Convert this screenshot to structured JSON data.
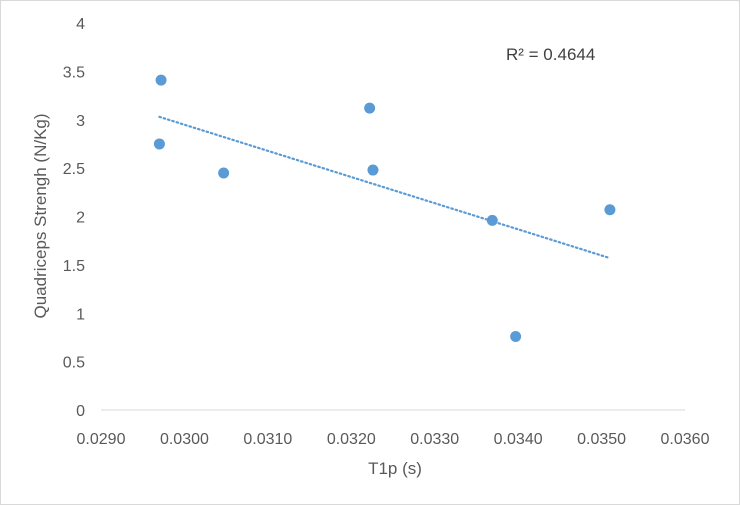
{
  "chart_data": {
    "type": "scatter",
    "title": "",
    "xlabel": "T1p (s)",
    "ylabel": "Quadriceps Strengh (N/Kg)",
    "xlim": [
      0.029,
      0.036
    ],
    "ylim": [
      0,
      4
    ],
    "x_ticks": [
      "0.0290",
      "0.0300",
      "0.0310",
      "0.0320",
      "0.0330",
      "0.0340",
      "0.0350",
      "0.0360"
    ],
    "y_ticks": [
      "0",
      "0.5",
      "1",
      "1.5",
      "2",
      "2.5",
      "3",
      "3.5",
      "4"
    ],
    "series": [
      {
        "points": [
          {
            "x": 0.02972,
            "y": 3.41
          },
          {
            "x": 0.0297,
            "y": 2.75
          },
          {
            "x": 0.03047,
            "y": 2.45
          },
          {
            "x": 0.03222,
            "y": 3.12
          },
          {
            "x": 0.03226,
            "y": 2.48
          },
          {
            "x": 0.03369,
            "y": 1.96
          },
          {
            "x": 0.03397,
            "y": 0.76
          },
          {
            "x": 0.0351,
            "y": 2.07
          }
        ],
        "color": "#5b9bd5"
      }
    ],
    "trendline": {
      "type": "linear",
      "style": "dotted",
      "color": "#5b9bd5",
      "from": {
        "x": 0.0297,
        "y": 3.03
      },
      "to": {
        "x": 0.0351,
        "y": 1.57
      },
      "label": "R² = 0.4644"
    },
    "grid": false,
    "legend": "none"
  }
}
